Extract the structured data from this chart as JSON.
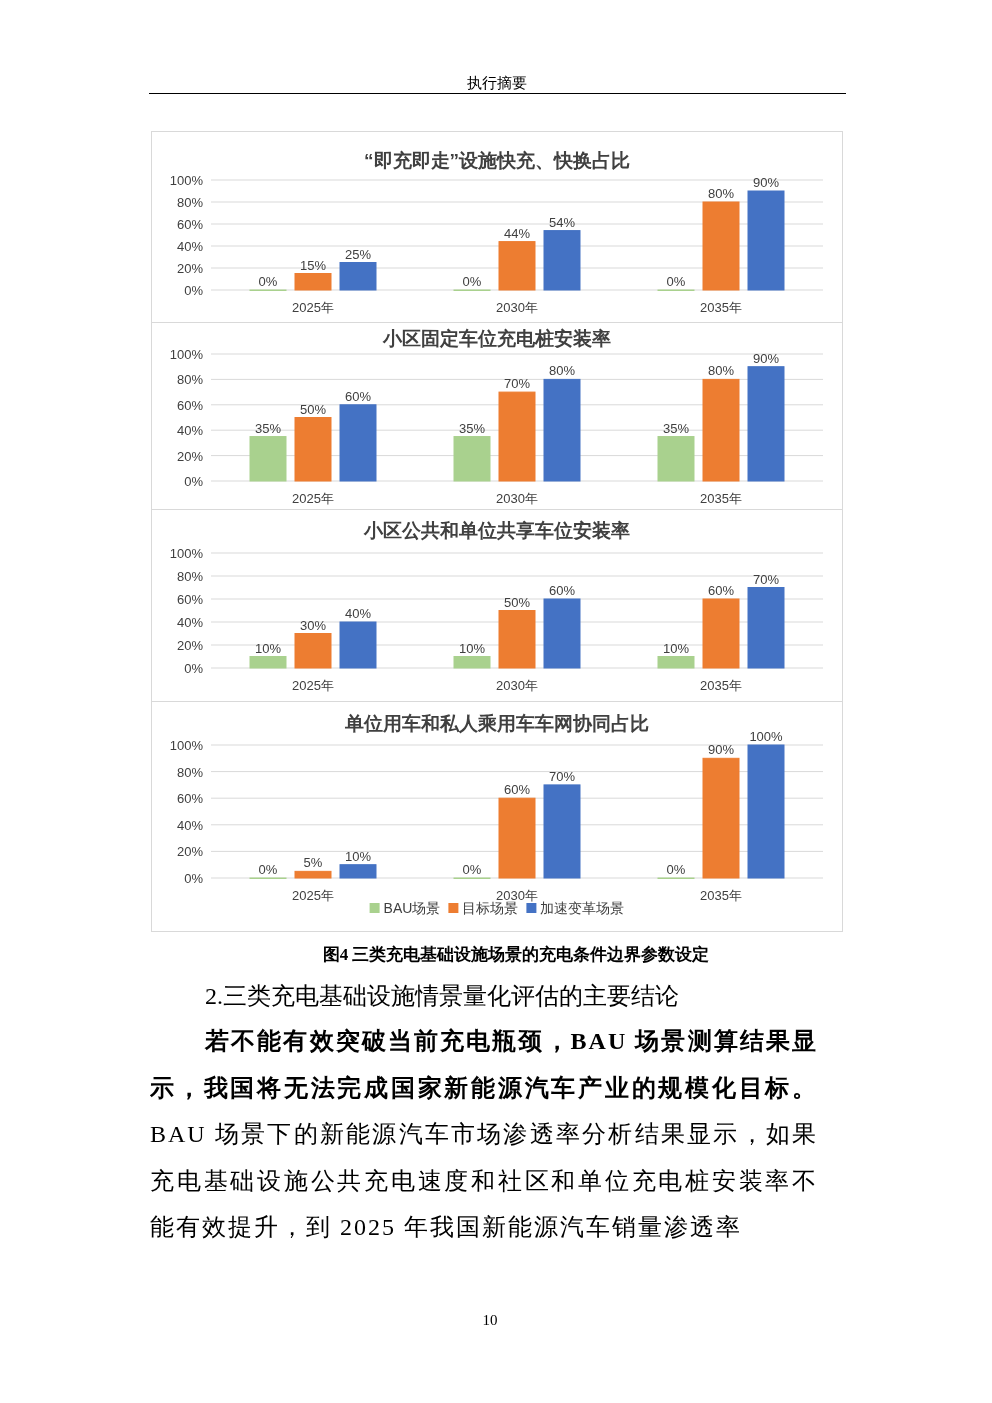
{
  "chart_data": [
    {
      "type": "bar",
      "title": "“即充即走”设施快充、快换占比",
      "categories": [
        "2025年",
        "2030年",
        "2035年"
      ],
      "ylim": [
        0,
        100
      ],
      "yticks": [
        {
          "value": 0,
          "label": "0%"
        },
        {
          "value": 20,
          "label": "20%"
        },
        {
          "value": 40,
          "label": "40%"
        },
        {
          "value": 60,
          "label": "60%"
        },
        {
          "value": 80,
          "label": "80%"
        },
        {
          "value": 100,
          "label": "100%"
        }
      ],
      "grid": "y",
      "legend": false,
      "series": [
        {
          "color": "#a9d18e",
          "values": [
            0,
            0,
            0
          ],
          "value_labels": [
            "0%",
            "0%",
            "0%"
          ]
        },
        {
          "color": "#ed7d31",
          "values": [
            15,
            44,
            80
          ],
          "value_labels": [
            "15%",
            "44%",
            "80%"
          ]
        },
        {
          "color": "#4472c4",
          "values": [
            25,
            54,
            90
          ],
          "value_labels": [
            "25%",
            "54%",
            "90%"
          ]
        }
      ],
      "annotations": [
        "执行摘要",
        "10"
      ]
    },
    {
      "type": "bar",
      "title": "小区固定车位充电桩安装率",
      "categories": [
        "2025年",
        "2030年",
        "2035年"
      ],
      "ylim": [
        0,
        100
      ],
      "yticks": [
        {
          "value": 0,
          "label": "0%"
        },
        {
          "value": 20,
          "label": "20%"
        },
        {
          "value": 40,
          "label": "40%"
        },
        {
          "value": 60,
          "label": "60%"
        },
        {
          "value": 80,
          "label": "80%"
        },
        {
          "value": 100,
          "label": "100%"
        }
      ],
      "grid": "y",
      "legend": false,
      "series": [
        {
          "color": "#a9d18e",
          "values": [
            35,
            35,
            35
          ],
          "value_labels": [
            "35%",
            "35%",
            "35%"
          ]
        },
        {
          "color": "#ed7d31",
          "values": [
            50,
            70,
            80
          ],
          "value_labels": [
            "50%",
            "70%",
            "80%"
          ]
        },
        {
          "color": "#4472c4",
          "values": [
            60,
            80,
            90
          ],
          "value_labels": [
            "60%",
            "80%",
            "90%"
          ]
        }
      ]
    },
    {
      "type": "bar",
      "title": "小区公共和单位共享车位安装率",
      "categories": [
        "2025年",
        "2030年",
        "2035年"
      ],
      "ylim": [
        0,
        100
      ],
      "yticks": [
        {
          "value": 0,
          "label": "0%"
        },
        {
          "value": 20,
          "label": "20%"
        },
        {
          "value": 40,
          "label": "40%"
        },
        {
          "value": 60,
          "label": "60%"
        },
        {
          "value": 80,
          "label": "80%"
        },
        {
          "value": 100,
          "label": "100%"
        }
      ],
      "grid": "y",
      "legend": false,
      "series": [
        {
          "color": "#a9d18e",
          "values": [
            10,
            10,
            10
          ],
          "value_labels": [
            "10%",
            "10%",
            "10%"
          ]
        },
        {
          "color": "#ed7d31",
          "values": [
            30,
            50,
            60
          ],
          "value_labels": [
            "30%",
            "50%",
            "60%"
          ]
        },
        {
          "color": "#4472c4",
          "values": [
            40,
            60,
            70
          ],
          "value_labels": [
            "40%",
            "60%",
            "70%"
          ]
        }
      ]
    },
    {
      "type": "bar",
      "title": "单位用车和私人乘用车车网协同占比",
      "categories": [
        "2025年",
        "2030年",
        "2035年"
      ],
      "ylim": [
        0,
        100
      ],
      "yticks": [
        {
          "value": 0,
          "label": "0%"
        },
        {
          "value": 20,
          "label": "20%"
        },
        {
          "value": 40,
          "label": "40%"
        },
        {
          "value": 60,
          "label": "60%"
        },
        {
          "value": 80,
          "label": "80%"
        },
        {
          "value": 100,
          "label": "100%"
        }
      ],
      "grid": "y",
      "legend": "bottom",
      "series": [
        {
          "name": "BAU场景",
          "color": "#a9d18e",
          "values": [
            0,
            0,
            0
          ],
          "value_labels": [
            "0%",
            "0%",
            "0%"
          ]
        },
        {
          "name": "目标场景",
          "color": "#ed7d31",
          "values": [
            5,
            60,
            90
          ],
          "value_labels": [
            "5%",
            "60%",
            "90%"
          ]
        },
        {
          "name": "加速变革场景",
          "color": "#4472c4",
          "values": [
            10,
            70,
            100
          ],
          "value_labels": [
            "10%",
            "70%",
            "100%"
          ]
        }
      ],
      "annotations": [
        "图4  三类充电基础设施场景的充电条件边界参数设定",
        "2.三类充电基础设施情景量化评估的主要结论",
        "若不能有效突破当前充电瓶颈，BAU 场景测算结果显示，我国将无法完成国家新能源汽车产业的规模化目标。",
        "BAU 场景下的新能源汽车市场渗透率分析结果显示，如果充电基础设施公共充电速度和社区和单位充电桩安装率不能有效提升，到 2025 年我国新能源汽车销量渗透率"
      ]
    }
  ]
}
